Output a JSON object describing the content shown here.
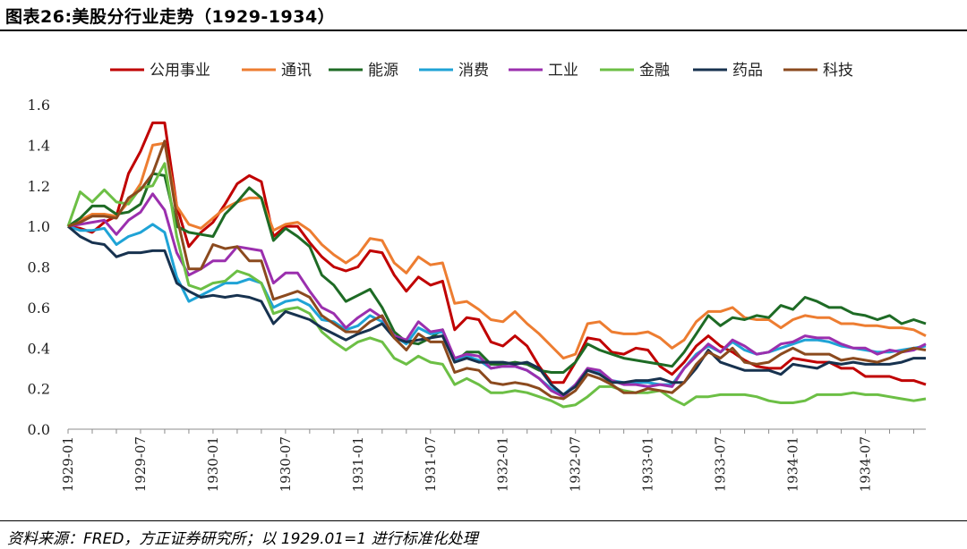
{
  "title": "图表26:美股分行业走势（1929-1934）",
  "source": "资料来源：FRED，方正证券研究所；以 1929.01=1 进行标准化处理",
  "chart_data": {
    "type": "line",
    "title": "",
    "xlabel": "",
    "ylabel": "",
    "ylim": [
      0,
      1.6
    ],
    "yticks": [
      "0.0",
      "0.2",
      "0.4",
      "0.6",
      "0.8",
      "1.0",
      "1.2",
      "1.4",
      "1.6"
    ],
    "grid": false,
    "legend_position": "top",
    "x": [
      "1929-01",
      "1929-02",
      "1929-03",
      "1929-04",
      "1929-05",
      "1929-06",
      "1929-07",
      "1929-08",
      "1929-09",
      "1929-10",
      "1929-11",
      "1929-12",
      "1930-01",
      "1930-02",
      "1930-03",
      "1930-04",
      "1930-05",
      "1930-06",
      "1930-07",
      "1930-08",
      "1930-09",
      "1930-10",
      "1930-11",
      "1930-12",
      "1931-01",
      "1931-02",
      "1931-03",
      "1931-04",
      "1931-05",
      "1931-06",
      "1931-07",
      "1931-08",
      "1931-09",
      "1931-10",
      "1931-11",
      "1931-12",
      "1932-01",
      "1932-02",
      "1932-03",
      "1932-04",
      "1932-05",
      "1932-06",
      "1932-07",
      "1932-08",
      "1932-09",
      "1932-10",
      "1932-11",
      "1932-12",
      "1933-01",
      "1933-02",
      "1933-03",
      "1933-04",
      "1933-05",
      "1933-06",
      "1933-07",
      "1933-08",
      "1933-09",
      "1933-10",
      "1933-11",
      "1933-12",
      "1934-01",
      "1934-02",
      "1934-03",
      "1934-04",
      "1934-05",
      "1934-06",
      "1934-07",
      "1934-08",
      "1934-09",
      "1934-10",
      "1934-11",
      "1934-12"
    ],
    "xtick_labels": [
      "1929-01",
      "1929-07",
      "1930-01",
      "1930-07",
      "1931-01",
      "1931-07",
      "1932-01",
      "1932-07",
      "1933-01",
      "1933-07",
      "1934-01",
      "1934-07"
    ],
    "series": [
      {
        "name": "公用事业",
        "color": "#c00000",
        "values": [
          1.0,
          0.99,
          0.97,
          1.02,
          1.05,
          1.26,
          1.37,
          1.51,
          1.51,
          1.1,
          0.9,
          0.97,
          1.02,
          1.11,
          1.21,
          1.25,
          1.22,
          0.95,
          1.0,
          1.0,
          0.92,
          0.85,
          0.8,
          0.78,
          0.8,
          0.88,
          0.87,
          0.76,
          0.68,
          0.75,
          0.71,
          0.73,
          0.49,
          0.55,
          0.54,
          0.43,
          0.41,
          0.46,
          0.41,
          0.31,
          0.23,
          0.23,
          0.33,
          0.45,
          0.44,
          0.38,
          0.37,
          0.4,
          0.39,
          0.31,
          0.27,
          0.33,
          0.41,
          0.46,
          0.41,
          0.38,
          0.34,
          0.31,
          0.3,
          0.3,
          0.35,
          0.34,
          0.33,
          0.33,
          0.3,
          0.3,
          0.26,
          0.26,
          0.26,
          0.24,
          0.24,
          0.22
        ]
      },
      {
        "name": "通讯",
        "color": "#ed7d31",
        "values": [
          1.0,
          1.03,
          1.06,
          1.06,
          1.05,
          1.12,
          1.21,
          1.4,
          1.41,
          1.1,
          1.01,
          0.99,
          1.04,
          1.09,
          1.12,
          1.14,
          1.14,
          0.98,
          1.01,
          1.02,
          0.98,
          0.91,
          0.86,
          0.82,
          0.86,
          0.94,
          0.93,
          0.82,
          0.77,
          0.85,
          0.81,
          0.82,
          0.62,
          0.63,
          0.59,
          0.54,
          0.53,
          0.58,
          0.52,
          0.47,
          0.41,
          0.35,
          0.37,
          0.52,
          0.53,
          0.48,
          0.47,
          0.47,
          0.48,
          0.45,
          0.4,
          0.44,
          0.53,
          0.58,
          0.58,
          0.6,
          0.55,
          0.54,
          0.54,
          0.5,
          0.54,
          0.56,
          0.55,
          0.55,
          0.52,
          0.52,
          0.51,
          0.51,
          0.5,
          0.5,
          0.49,
          0.46
        ]
      },
      {
        "name": "能源",
        "color": "#1e6b25",
        "values": [
          1.0,
          1.04,
          1.1,
          1.1,
          1.06,
          1.07,
          1.11,
          1.26,
          1.25,
          1.0,
          0.97,
          0.96,
          0.95,
          1.06,
          1.12,
          1.19,
          1.14,
          0.93,
          0.99,
          0.95,
          0.9,
          0.76,
          0.71,
          0.63,
          0.66,
          0.69,
          0.6,
          0.48,
          0.43,
          0.42,
          0.45,
          0.49,
          0.33,
          0.38,
          0.38,
          0.32,
          0.32,
          0.33,
          0.32,
          0.29,
          0.28,
          0.28,
          0.33,
          0.42,
          0.39,
          0.37,
          0.35,
          0.34,
          0.33,
          0.32,
          0.31,
          0.38,
          0.47,
          0.56,
          0.51,
          0.55,
          0.54,
          0.56,
          0.55,
          0.61,
          0.59,
          0.65,
          0.63,
          0.6,
          0.6,
          0.57,
          0.56,
          0.54,
          0.56,
          0.52,
          0.54,
          0.52
        ]
      },
      {
        "name": "消费",
        "color": "#1fa3d6",
        "values": [
          1.0,
          0.98,
          0.98,
          0.99,
          0.91,
          0.95,
          0.97,
          1.01,
          0.97,
          0.75,
          0.63,
          0.66,
          0.69,
          0.72,
          0.72,
          0.74,
          0.72,
          0.6,
          0.63,
          0.64,
          0.61,
          0.54,
          0.53,
          0.49,
          0.51,
          0.56,
          0.53,
          0.46,
          0.42,
          0.5,
          0.47,
          0.48,
          0.34,
          0.36,
          0.34,
          0.3,
          0.31,
          0.31,
          0.29,
          0.25,
          0.2,
          0.17,
          0.22,
          0.29,
          0.28,
          0.24,
          0.23,
          0.23,
          0.23,
          0.22,
          0.22,
          0.3,
          0.37,
          0.41,
          0.38,
          0.43,
          0.39,
          0.37,
          0.38,
          0.4,
          0.42,
          0.44,
          0.44,
          0.43,
          0.41,
          0.4,
          0.39,
          0.38,
          0.38,
          0.39,
          0.4,
          0.41
        ]
      },
      {
        "name": "工业",
        "color": "#9b2fae",
        "values": [
          1.0,
          1.01,
          1.02,
          1.03,
          0.96,
          1.03,
          1.07,
          1.16,
          1.08,
          0.87,
          0.76,
          0.79,
          0.83,
          0.83,
          0.9,
          0.89,
          0.88,
          0.72,
          0.77,
          0.77,
          0.68,
          0.6,
          0.57,
          0.5,
          0.55,
          0.59,
          0.55,
          0.46,
          0.44,
          0.53,
          0.48,
          0.49,
          0.35,
          0.37,
          0.36,
          0.3,
          0.31,
          0.31,
          0.29,
          0.25,
          0.19,
          0.16,
          0.22,
          0.3,
          0.29,
          0.24,
          0.22,
          0.22,
          0.21,
          0.22,
          0.21,
          0.3,
          0.36,
          0.42,
          0.38,
          0.44,
          0.41,
          0.37,
          0.38,
          0.42,
          0.43,
          0.46,
          0.45,
          0.45,
          0.42,
          0.4,
          0.4,
          0.37,
          0.39,
          0.38,
          0.39,
          0.42
        ]
      },
      {
        "name": "金融",
        "color": "#6cbf45",
        "values": [
          1.0,
          1.17,
          1.12,
          1.18,
          1.12,
          1.11,
          1.19,
          1.2,
          1.31,
          0.95,
          0.71,
          0.69,
          0.72,
          0.73,
          0.78,
          0.76,
          0.72,
          0.57,
          0.59,
          0.6,
          0.57,
          0.48,
          0.43,
          0.39,
          0.43,
          0.45,
          0.43,
          0.35,
          0.32,
          0.36,
          0.33,
          0.32,
          0.22,
          0.25,
          0.22,
          0.18,
          0.18,
          0.19,
          0.18,
          0.16,
          0.14,
          0.11,
          0.12,
          0.16,
          0.21,
          0.21,
          0.19,
          0.18,
          0.18,
          0.19,
          0.15,
          0.12,
          0.16,
          0.16,
          0.17,
          0.17,
          0.17,
          0.16,
          0.14,
          0.13,
          0.13,
          0.14,
          0.17,
          0.17,
          0.17,
          0.18,
          0.17,
          0.17,
          0.16,
          0.15,
          0.14,
          0.15
        ]
      },
      {
        "name": "药品",
        "color": "#17324f",
        "values": [
          1.0,
          0.95,
          0.92,
          0.91,
          0.85,
          0.87,
          0.87,
          0.88,
          0.88,
          0.72,
          0.68,
          0.65,
          0.66,
          0.65,
          0.66,
          0.65,
          0.63,
          0.52,
          0.58,
          0.56,
          0.54,
          0.5,
          0.47,
          0.44,
          0.47,
          0.49,
          0.52,
          0.45,
          0.43,
          0.44,
          0.45,
          0.46,
          0.33,
          0.35,
          0.33,
          0.33,
          0.33,
          0.32,
          0.33,
          0.3,
          0.22,
          0.17,
          0.21,
          0.29,
          0.27,
          0.23,
          0.23,
          0.24,
          0.24,
          0.25,
          0.23,
          0.23,
          0.3,
          0.39,
          0.33,
          0.31,
          0.29,
          0.29,
          0.29,
          0.27,
          0.32,
          0.31,
          0.3,
          0.33,
          0.32,
          0.33,
          0.32,
          0.32,
          0.32,
          0.33,
          0.35,
          0.35
        ]
      },
      {
        "name": "科技",
        "color": "#8b4a1e",
        "values": [
          1.0,
          1.02,
          1.05,
          1.05,
          1.04,
          1.14,
          1.18,
          1.26,
          1.42,
          1.05,
          0.79,
          0.79,
          0.91,
          0.89,
          0.9,
          0.83,
          0.83,
          0.64,
          0.66,
          0.68,
          0.65,
          0.56,
          0.52,
          0.48,
          0.48,
          0.53,
          0.56,
          0.45,
          0.39,
          0.47,
          0.43,
          0.43,
          0.28,
          0.3,
          0.29,
          0.23,
          0.22,
          0.23,
          0.22,
          0.2,
          0.16,
          0.15,
          0.19,
          0.27,
          0.25,
          0.22,
          0.18,
          0.18,
          0.2,
          0.19,
          0.18,
          0.23,
          0.32,
          0.38,
          0.35,
          0.4,
          0.33,
          0.32,
          0.33,
          0.37,
          0.4,
          0.37,
          0.37,
          0.37,
          0.34,
          0.35,
          0.34,
          0.33,
          0.35,
          0.38,
          0.4,
          0.39
        ]
      }
    ]
  }
}
